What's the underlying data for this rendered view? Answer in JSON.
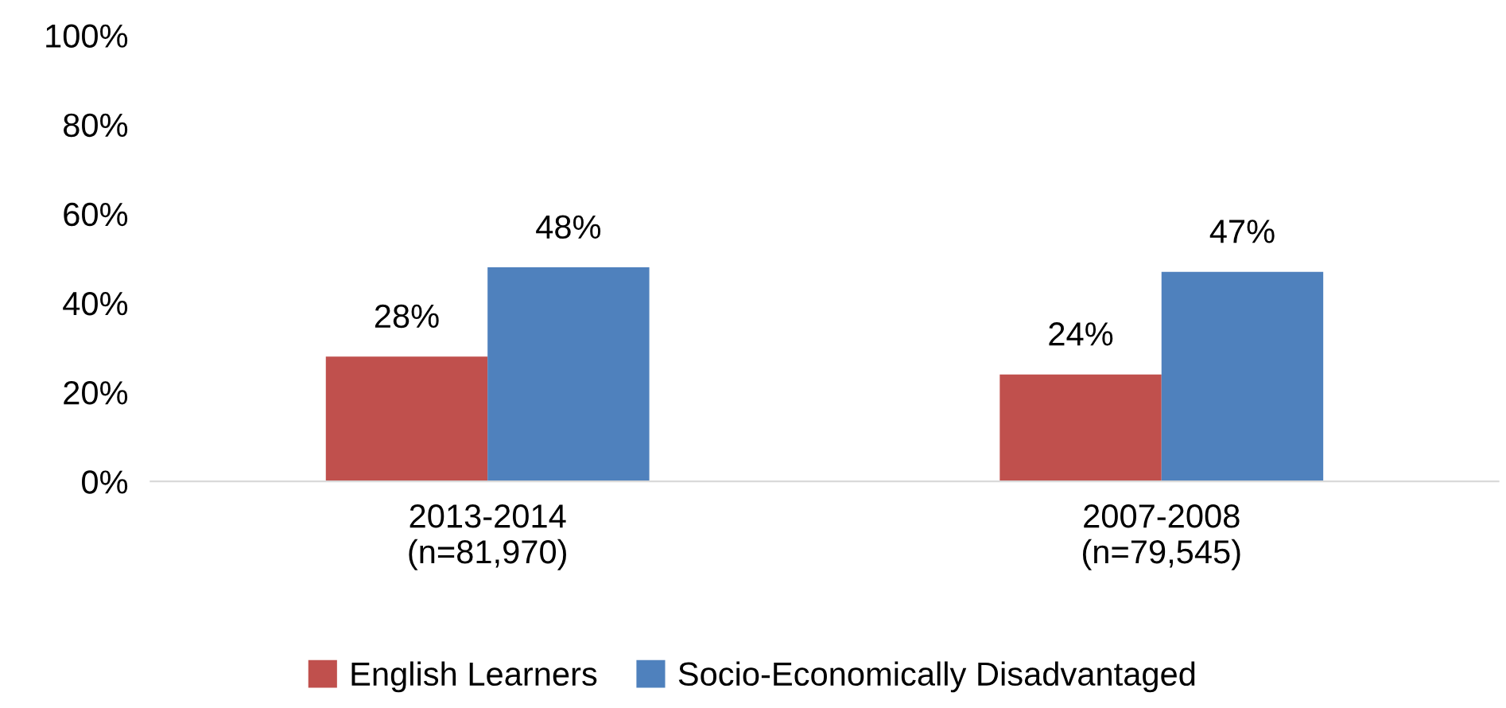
{
  "chart_data": {
    "type": "bar",
    "categories": [
      "2013-2014\n(n=81,970)",
      "2007-2008\n(n=79,545)"
    ],
    "series": [
      {
        "name": "English Learners",
        "color": "#c0504d",
        "values": [
          28,
          24
        ],
        "value_labels": [
          "28%",
          "24%"
        ]
      },
      {
        "name": "Socio-Economically Disadvantaged",
        "color": "#4f81bd",
        "values": [
          48,
          47
        ],
        "value_labels": [
          "48%",
          "47%"
        ]
      }
    ],
    "ylim": [
      0,
      100
    ],
    "yticks": [
      {
        "value": 0,
        "label": "0%"
      },
      {
        "value": 20,
        "label": "20%"
      },
      {
        "value": 40,
        "label": "40%"
      },
      {
        "value": 60,
        "label": "60%"
      },
      {
        "value": 80,
        "label": "80%"
      },
      {
        "value": 100,
        "label": "100%"
      }
    ],
    "grid": false,
    "legend": "bottom"
  }
}
